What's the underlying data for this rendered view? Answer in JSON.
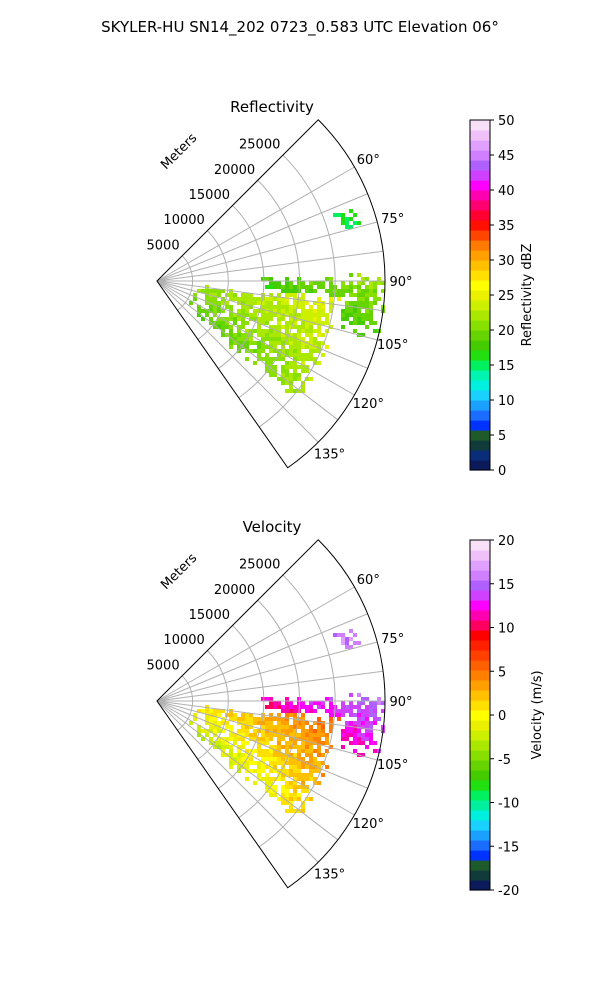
{
  "figure": {
    "suptitle": "SKYLER-HU  SN14_202  0723_0.583 UTC Elevation 06°"
  },
  "chart_data": [
    {
      "type": "heatmap",
      "projection": "polar-sector",
      "title": "Reflectivity",
      "radial_label": "Meters",
      "range_ticks": [
        "5000",
        "10000",
        "15000",
        "20000",
        "25000"
      ],
      "range_tick_values": [
        5000,
        10000,
        15000,
        20000,
        25000
      ],
      "rmax": 32000,
      "azimuth_ticks": [
        "60°",
        "75°",
        "90°",
        "105°",
        "120°",
        "135°"
      ],
      "azimuth_tick_values": [
        60,
        75,
        90,
        105,
        120,
        135
      ],
      "azimuth_range": [
        45,
        145
      ],
      "grid": true,
      "colorbar": {
        "label": "Reflectivity dBZ",
        "vmin": 0,
        "vmax": 50,
        "ticks": [
          "0",
          "5",
          "10",
          "15",
          "20",
          "25",
          "30",
          "35",
          "40",
          "45",
          "50"
        ],
        "tick_values": [
          0,
          5,
          10,
          15,
          20,
          25,
          30,
          35,
          40,
          45,
          50
        ]
      },
      "echo_regions": [
        {
          "az_min": 94,
          "az_max": 132,
          "r_min": 5000,
          "r_max": 26000,
          "value_min": 18,
          "value_max": 25
        },
        {
          "az_min": 87,
          "az_max": 105,
          "r_min": 14000,
          "r_max": 32000,
          "value_min": 15,
          "value_max": 22
        },
        {
          "az_min": 68,
          "az_max": 76,
          "r_min": 26000,
          "r_max": 30000,
          "value_min": 14,
          "value_max": 17
        }
      ]
    },
    {
      "type": "heatmap",
      "projection": "polar-sector",
      "title": "Velocity",
      "radial_label": "Meters",
      "range_ticks": [
        "5000",
        "10000",
        "15000",
        "20000",
        "25000"
      ],
      "range_tick_values": [
        5000,
        10000,
        15000,
        20000,
        25000
      ],
      "rmax": 32000,
      "azimuth_ticks": [
        "60°",
        "75°",
        "90°",
        "105°",
        "120°",
        "135°"
      ],
      "azimuth_tick_values": [
        60,
        75,
        90,
        105,
        120,
        135
      ],
      "azimuth_range": [
        45,
        145
      ],
      "grid": true,
      "colorbar": {
        "label": "Velocity (m/s)",
        "vmin": -20,
        "vmax": 20,
        "ticks": [
          "-20",
          "-15",
          "-10",
          "-5",
          "0",
          "5",
          "10",
          "15",
          "20"
        ],
        "tick_values": [
          -20,
          -15,
          -10,
          -5,
          0,
          5,
          10,
          15,
          20
        ]
      },
      "echo_regions": [
        {
          "az_min": 94,
          "az_max": 132,
          "r_min": 5000,
          "r_max": 26000,
          "value_min": -4,
          "value_max": 6
        },
        {
          "az_min": 87,
          "az_max": 105,
          "r_min": 14000,
          "r_max": 32000,
          "value_min": 8,
          "value_max": 16
        },
        {
          "az_min": 68,
          "az_max": 76,
          "r_min": 26000,
          "r_max": 30000,
          "value_min": 15,
          "value_max": 17
        }
      ]
    }
  ],
  "colors": {
    "reflectivity_scale": [
      "#0b1a5a",
      "#0a2d7a",
      "#103b3a",
      "#1e5a2a",
      "#0033ff",
      "#1a6dff",
      "#1aa0ff",
      "#19d0ff",
      "#00f0e0",
      "#00f5b0",
      "#00f060",
      "#22e010",
      "#44cc00",
      "#66d400",
      "#88e000",
      "#aae800",
      "#ccf000",
      "#eaf000",
      "#ffff00",
      "#ffe000",
      "#ffc000",
      "#ffa000",
      "#ff7a00",
      "#ff4500",
      "#ff1000",
      "#ff0030",
      "#ff0070",
      "#ff00b0",
      "#ff00ff",
      "#d040ff",
      "#b060ff",
      "#d080ff",
      "#e0a0ff",
      "#f0c0f8",
      "#f8e0f8"
    ],
    "velocity_scale": [
      "#0b1a5a",
      "#103b3a",
      "#1e5a2a",
      "#0033ff",
      "#1a6dff",
      "#1aa0ff",
      "#19d0ff",
      "#00f0e0",
      "#00f0a0",
      "#00f060",
      "#22e010",
      "#44cc00",
      "#66d400",
      "#88e000",
      "#aae800",
      "#ccf000",
      "#eaf000",
      "#ffff00",
      "#ffe000",
      "#ffc000",
      "#ffa000",
      "#ff8000",
      "#ff6000",
      "#ff4000",
      "#ff2000",
      "#ff0000",
      "#ff0060",
      "#ff00b0",
      "#ff00ff",
      "#d040ff",
      "#b060ff",
      "#d080ff",
      "#e0a0ff",
      "#f0c0f8",
      "#f8e0f8"
    ]
  }
}
